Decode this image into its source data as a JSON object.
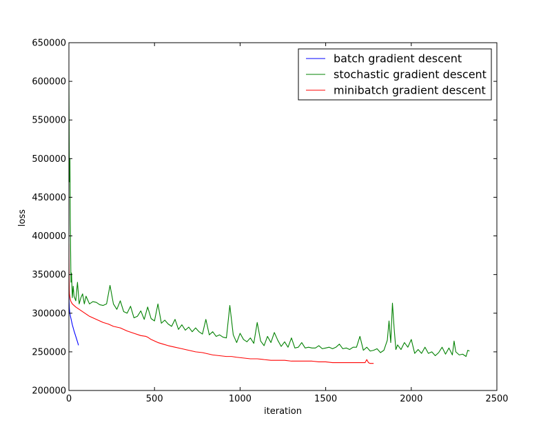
{
  "chart_data": {
    "type": "line",
    "title": "",
    "xlabel": "iteration",
    "ylabel": "loss",
    "xlim": [
      0,
      2500
    ],
    "ylim": [
      200000,
      650000
    ],
    "xticks": [
      0,
      500,
      1000,
      1500,
      2000,
      2500
    ],
    "xtick_labels": [
      "0",
      "500",
      "1000",
      "1500",
      "2000",
      "2500"
    ],
    "yticks": [
      200000,
      250000,
      300000,
      350000,
      400000,
      450000,
      500000,
      550000,
      600000,
      650000
    ],
    "ytick_labels": [
      "200000",
      "250000",
      "300000",
      "350000",
      "400000",
      "450000",
      "500000",
      "550000",
      "600000",
      "650000"
    ],
    "grid": false,
    "legend_position": "top-right",
    "series": [
      {
        "name": "batch gradient descent",
        "color": "#0000ff",
        "x": [
          0,
          1,
          2,
          3,
          5,
          8,
          12,
          20,
          30,
          40,
          50,
          56
        ],
        "y": [
          330000,
          315000,
          309000,
          305000,
          301000,
          297000,
          293000,
          285000,
          277000,
          270000,
          263000,
          258500
        ]
      },
      {
        "name": "stochastic gradient descent",
        "color": "#008000",
        "x": [
          0,
          2,
          4,
          6,
          8,
          10,
          12,
          15,
          20,
          25,
          30,
          40,
          50,
          60,
          70,
          80,
          90,
          100,
          120,
          140,
          160,
          180,
          200,
          220,
          240,
          260,
          280,
          300,
          320,
          340,
          360,
          380,
          400,
          420,
          440,
          460,
          480,
          500,
          520,
          540,
          560,
          580,
          600,
          620,
          640,
          660,
          680,
          700,
          720,
          740,
          760,
          780,
          800,
          820,
          840,
          860,
          880,
          900,
          920,
          940,
          960,
          980,
          1000,
          1020,
          1040,
          1060,
          1080,
          1100,
          1120,
          1140,
          1160,
          1180,
          1200,
          1220,
          1240,
          1260,
          1280,
          1300,
          1320,
          1340,
          1360,
          1380,
          1400,
          1420,
          1440,
          1460,
          1480,
          1500,
          1520,
          1540,
          1560,
          1580,
          1600,
          1620,
          1640,
          1660,
          1680,
          1700,
          1720,
          1740,
          1760,
          1780,
          1800,
          1820,
          1840,
          1860,
          1870,
          1880,
          1890,
          1900,
          1910,
          1920,
          1940,
          1960,
          1980,
          2000,
          2020,
          2040,
          2060,
          2080,
          2100,
          2120,
          2140,
          2160,
          2180,
          2200,
          2220,
          2240,
          2250,
          2260,
          2280,
          2300,
          2320,
          2330,
          2340
        ],
        "y": [
          600000,
          510000,
          470000,
          500000,
          420000,
          380000,
          340000,
          352000,
          320000,
          335000,
          322000,
          316000,
          340000,
          312000,
          320000,
          325000,
          312000,
          322000,
          312000,
          315000,
          314000,
          311000,
          310000,
          312000,
          336000,
          312000,
          305000,
          316000,
          302000,
          300000,
          309000,
          294000,
          296000,
          303000,
          292000,
          308000,
          293000,
          290000,
          312000,
          287000,
          291000,
          286000,
          283000,
          292000,
          279000,
          285000,
          278000,
          282000,
          276000,
          281000,
          276000,
          273000,
          292000,
          272000,
          276000,
          270000,
          272000,
          269000,
          268000,
          310000,
          272000,
          262000,
          274000,
          266000,
          263000,
          268000,
          261000,
          288000,
          264000,
          258000,
          270000,
          262000,
          275000,
          265000,
          257000,
          263000,
          256000,
          268000,
          255000,
          256000,
          262000,
          255000,
          256000,
          255000,
          255000,
          258000,
          254000,
          255000,
          256000,
          254000,
          256000,
          260000,
          254000,
          255000,
          253000,
          256000,
          256000,
          270000,
          252000,
          256000,
          251000,
          252000,
          254000,
          249000,
          252000,
          265000,
          290000,
          262000,
          313000,
          280000,
          253000,
          259000,
          253000,
          262000,
          256000,
          266000,
          248000,
          253000,
          248000,
          256000,
          248000,
          250000,
          245000,
          249000,
          256000,
          247000,
          255000,
          246000,
          264000,
          250000,
          246000,
          247000,
          244000,
          252000,
          251000
        ]
      },
      {
        "name": "minibatch gradient descent",
        "color": "#ff0000",
        "x": [
          0,
          1,
          2,
          3,
          5,
          8,
          12,
          20,
          30,
          40,
          60,
          80,
          100,
          120,
          150,
          180,
          200,
          230,
          260,
          300,
          340,
          380,
          420,
          450,
          460,
          480,
          500,
          520,
          550,
          580,
          620,
          660,
          700,
          740,
          780,
          800,
          840,
          880,
          920,
          950,
          980,
          1020,
          1060,
          1100,
          1140,
          1180,
          1220,
          1260,
          1300,
          1340,
          1380,
          1420,
          1460,
          1500,
          1540,
          1580,
          1620,
          1660,
          1700,
          1730,
          1740,
          1750,
          1760,
          1780
        ],
        "y": [
          390000,
          350000,
          330000,
          325000,
          322000,
          318000,
          315000,
          312000,
          310000,
          308000,
          305000,
          302000,
          299000,
          296000,
          293000,
          290000,
          288000,
          286000,
          283000,
          281000,
          277000,
          274000,
          271000,
          270000,
          269000,
          266000,
          264000,
          262000,
          260000,
          258000,
          256000,
          254000,
          252000,
          250000,
          249000,
          248000,
          246000,
          245000,
          244000,
          244000,
          243000,
          242000,
          241000,
          241000,
          240000,
          239000,
          239000,
          239000,
          238000,
          238000,
          238000,
          238000,
          237000,
          237000,
          236000,
          236000,
          236000,
          236000,
          236000,
          236000,
          240000,
          236000,
          235000,
          235000
        ]
      }
    ]
  }
}
